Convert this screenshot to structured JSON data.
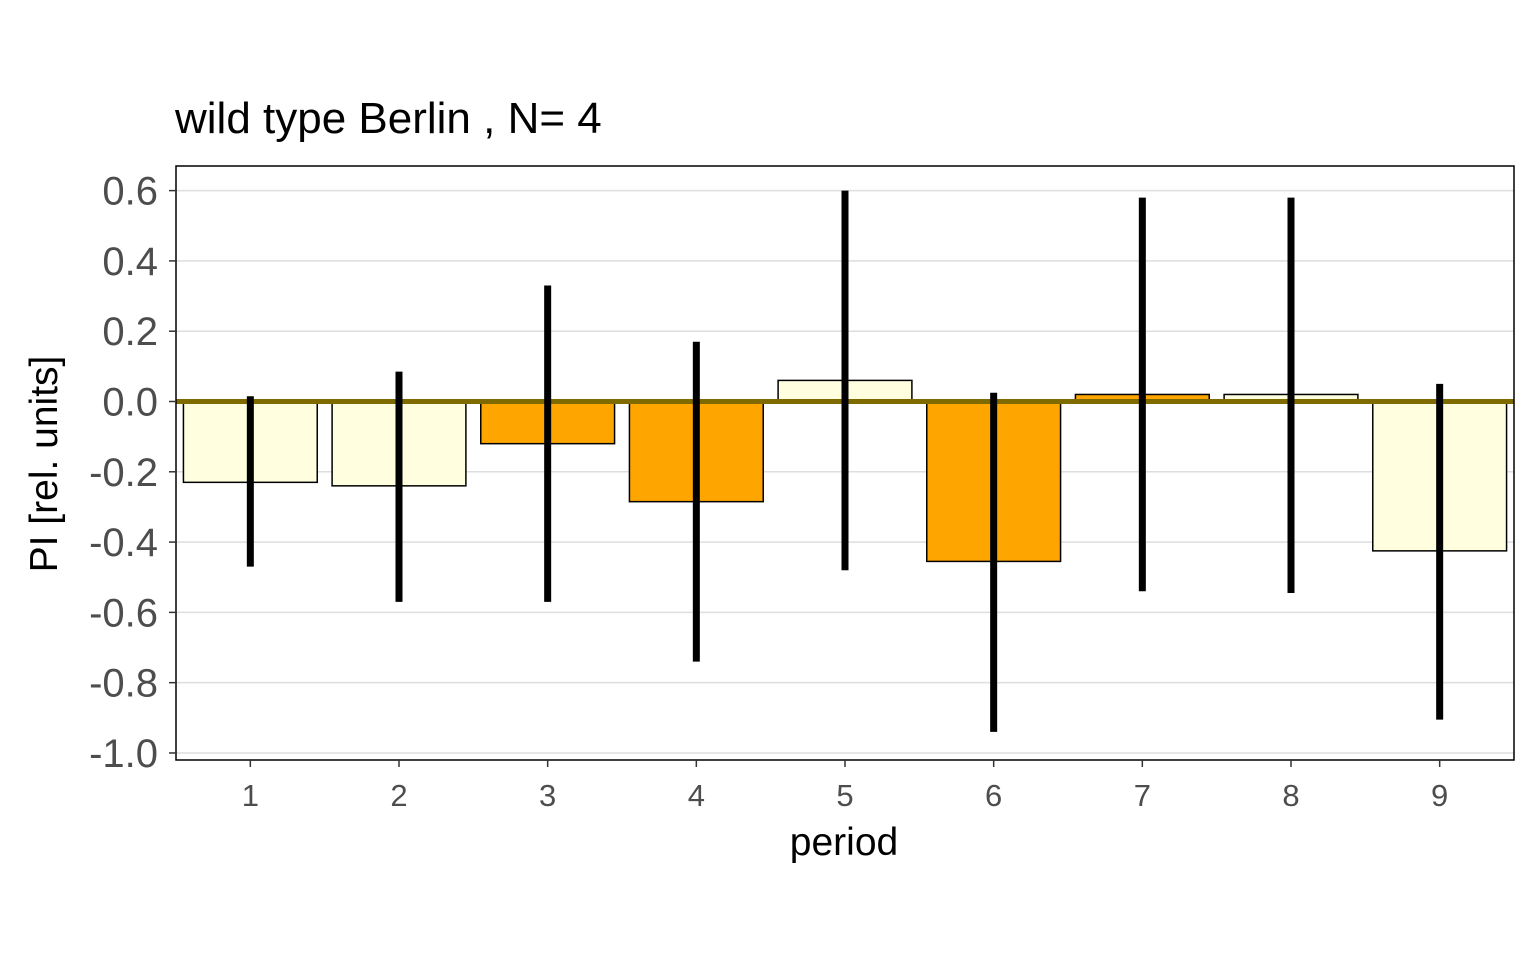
{
  "chart_data": {
    "type": "bar",
    "title": "wild type Berlin , N= 4",
    "xlabel": "period",
    "ylabel": "PI [rel. units]",
    "categories": [
      "1",
      "2",
      "3",
      "4",
      "5",
      "6",
      "7",
      "8",
      "9"
    ],
    "values": [
      -0.23,
      -0.24,
      -0.12,
      -0.285,
      0.06,
      -0.455,
      0.02,
      0.02,
      -0.425
    ],
    "error_bars": {
      "lower": [
        -0.47,
        -0.57,
        -0.57,
        -0.74,
        -0.48,
        -0.94,
        -0.54,
        -0.545,
        -0.905
      ],
      "upper": [
        0.015,
        0.085,
        0.33,
        0.17,
        0.6,
        0.025,
        0.58,
        0.58,
        0.05
      ]
    },
    "bar_fill": [
      "#ffffe0",
      "#ffffe0",
      "#ffa500",
      "#ffa500",
      "#ffffe0",
      "#ffa500",
      "#ffa500",
      "#ffffe0",
      "#ffffe0"
    ],
    "ylim": [
      -1.02,
      0.67
    ],
    "yticks": [
      -1.0,
      -0.8,
      -0.6,
      -0.4,
      -0.2,
      0.0,
      0.2,
      0.4,
      0.6
    ],
    "ytick_labels": [
      "-1.0",
      "-0.8",
      "-0.6",
      "-0.4",
      "-0.2",
      "0.0",
      "0.2",
      "0.4",
      "0.6"
    ],
    "zero_line_color": "#7f6a00",
    "gridlines": "horizontal",
    "legend": "none"
  }
}
